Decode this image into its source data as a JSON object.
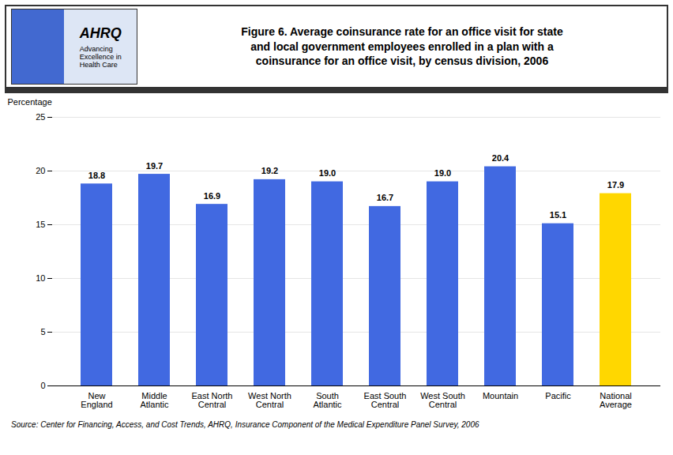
{
  "chart_data": {
    "type": "bar",
    "title": "Figure 6. Average coinsurance rate for an office visit for state\nand local government employees enrolled in a plan with a\ncoinsurance for an office visit, by census division, 2006",
    "annotations": [
      "AHRQ",
      "Advancing\nExcellence in\nHealth Care"
    ],
    "source": "Source: Center for Financing, Access, and Cost Trends, AHRQ, Insurance Component of the Medical Expenditure Panel Survey, 2006",
    "categories": [
      "New\nEngland",
      "Middle\nAtlantic",
      "East North\nCentral",
      "West North\nCentral",
      "South\nAtlantic",
      "East South\nCentral",
      "West South\nCentral",
      "Mountain",
      "Pacific",
      "National\nAverage"
    ],
    "values": [
      18.8,
      19.7,
      16.9,
      19.2,
      19.0,
      16.7,
      19.0,
      20.4,
      15.1,
      17.9
    ],
    "value_labels": [
      "18.8",
      "19.7",
      "16.9",
      "19.2",
      "19.0",
      "16.7",
      "19.0",
      "20.4",
      "15.1",
      "17.9"
    ],
    "colors": [
      "#4169E1",
      "#4169E1",
      "#4169E1",
      "#4169E1",
      "#4169E1",
      "#4169E1",
      "#4169E1",
      "#4169E1",
      "#4169E1",
      "#FFD700"
    ],
    "ylabel": "Percentage",
    "ylim": [
      0,
      25
    ],
    "yticks": [
      0,
      5,
      10,
      15,
      20,
      25
    ],
    "grid": true,
    "data_labels": true
  }
}
